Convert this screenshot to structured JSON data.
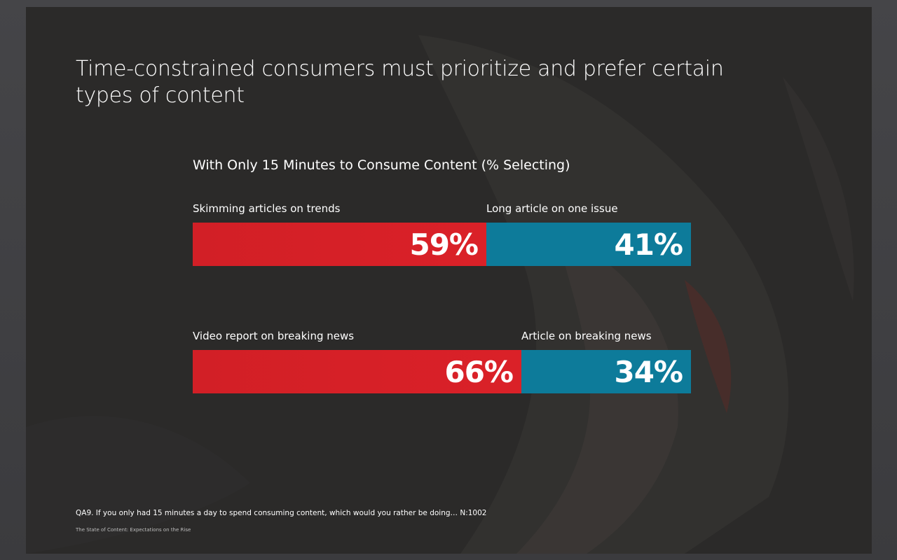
{
  "slide": {
    "title": "Time-constrained consumers must prioritize and prefer certain types of content",
    "footnote": "QA9. If you only had 15 minutes a day to spend consuming content, which would you rather be doing… N:1002",
    "source": "The State of Content: Expectations on the Rise"
  },
  "colors": {
    "red": "#d21f26",
    "blue": "#0d7b9a",
    "background": "#2b2a29"
  },
  "chart_data": {
    "type": "bar",
    "orientation": "horizontal-stacked",
    "title": "With Only 15 Minutes to Consume Content (% Selecting)",
    "unit": "%",
    "rows": [
      {
        "left": {
          "label": "Skimming articles on trends",
          "value": 59,
          "display": "59%"
        },
        "right": {
          "label": "Long article on one issue",
          "value": 41,
          "display": "41%"
        }
      },
      {
        "left": {
          "label": "Video report on breaking news",
          "value": 66,
          "display": "66%"
        },
        "right": {
          "label": "Article on breaking news",
          "value": 34,
          "display": "34%"
        }
      }
    ]
  }
}
